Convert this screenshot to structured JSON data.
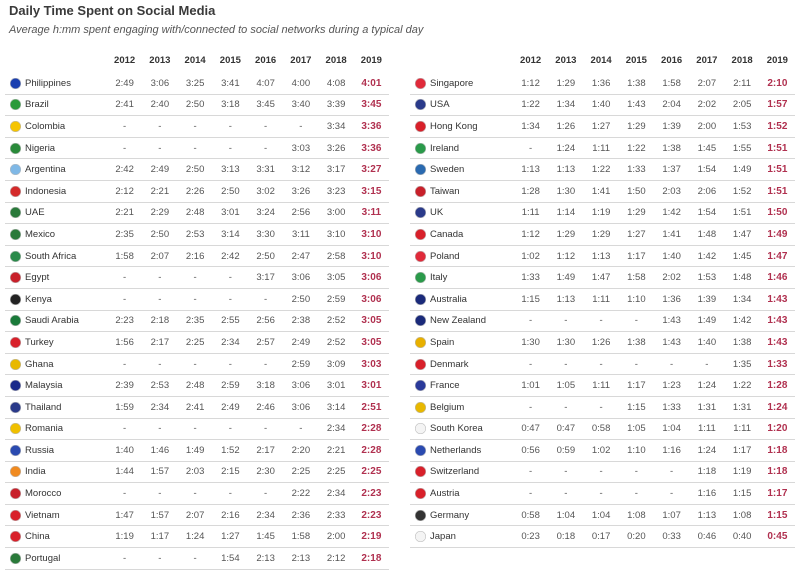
{
  "title": "Daily Time Spent on Social Media",
  "subtitle": "Average h:mm spent engaging with/connected to social networks during a typical day",
  "years": [
    "2012",
    "2013",
    "2014",
    "2015",
    "2016",
    "2017",
    "2018",
    "2019"
  ],
  "left": [
    {
      "country": "Philippines",
      "values": [
        "2:49",
        "3:06",
        "3:25",
        "3:41",
        "4:07",
        "4:00",
        "4:08",
        "4:01"
      ],
      "flag": "#1a3fb0"
    },
    {
      "country": "Brazil",
      "values": [
        "2:41",
        "2:40",
        "2:50",
        "3:18",
        "3:45",
        "3:40",
        "3:39",
        "3:45"
      ],
      "flag": "#2a9a3a"
    },
    {
      "country": "Colombia",
      "values": [
        "-",
        "-",
        "-",
        "-",
        "-",
        "-",
        "3:34",
        "3:36"
      ],
      "flag": "#f5c400"
    },
    {
      "country": "Nigeria",
      "values": [
        "-",
        "-",
        "-",
        "-",
        "-",
        "3:03",
        "3:26",
        "3:36"
      ],
      "flag": "#2a8a3a"
    },
    {
      "country": "Argentina",
      "values": [
        "2:42",
        "2:49",
        "2:50",
        "3:13",
        "3:31",
        "3:12",
        "3:17",
        "3:27"
      ],
      "flag": "#7fb8e6"
    },
    {
      "country": "Indonesia",
      "values": [
        "2:12",
        "2:21",
        "2:26",
        "2:50",
        "3:02",
        "3:26",
        "3:23",
        "3:15"
      ],
      "flag": "#d42a2a"
    },
    {
      "country": "UAE",
      "values": [
        "2:21",
        "2:29",
        "2:48",
        "3:01",
        "3:24",
        "2:56",
        "3:00",
        "3:11"
      ],
      "flag": "#2a7a3a"
    },
    {
      "country": "Mexico",
      "values": [
        "2:35",
        "2:50",
        "2:53",
        "3:14",
        "3:30",
        "3:11",
        "3:10",
        "3:10"
      ],
      "flag": "#2a7a3a"
    },
    {
      "country": "South Africa",
      "values": [
        "1:58",
        "2:07",
        "2:16",
        "2:42",
        "2:50",
        "2:47",
        "2:58",
        "3:10"
      ],
      "flag": "#2a8a4a"
    },
    {
      "country": "Egypt",
      "values": [
        "-",
        "-",
        "-",
        "-",
        "3:17",
        "3:06",
        "3:05",
        "3:06"
      ],
      "flag": "#c8202a"
    },
    {
      "country": "Kenya",
      "values": [
        "-",
        "-",
        "-",
        "-",
        "-",
        "2:50",
        "2:59",
        "3:06"
      ],
      "flag": "#222222"
    },
    {
      "country": "Saudi Arabia",
      "values": [
        "2:23",
        "2:18",
        "2:35",
        "2:55",
        "2:56",
        "2:38",
        "2:52",
        "3:05"
      ],
      "flag": "#1a7a3a"
    },
    {
      "country": "Turkey",
      "values": [
        "1:56",
        "2:17",
        "2:25",
        "2:34",
        "2:57",
        "2:49",
        "2:52",
        "3:05"
      ],
      "flag": "#d8202a"
    },
    {
      "country": "Ghana",
      "values": [
        "-",
        "-",
        "-",
        "-",
        "-",
        "2:59",
        "3:09",
        "3:03"
      ],
      "flag": "#e8b800"
    },
    {
      "country": "Malaysia",
      "values": [
        "2:39",
        "2:53",
        "2:48",
        "2:59",
        "3:18",
        "3:06",
        "3:01",
        "3:01"
      ],
      "flag": "#1a2a8a"
    },
    {
      "country": "Thailand",
      "values": [
        "1:59",
        "2:34",
        "2:41",
        "2:49",
        "2:46",
        "3:06",
        "3:14",
        "2:51"
      ],
      "flag": "#2a3a8a"
    },
    {
      "country": "Romania",
      "values": [
        "-",
        "-",
        "-",
        "-",
        "-",
        "-",
        "2:34",
        "2:28"
      ],
      "flag": "#f0c000"
    },
    {
      "country": "Russia",
      "values": [
        "1:40",
        "1:46",
        "1:49",
        "1:52",
        "2:17",
        "2:20",
        "2:21",
        "2:28"
      ],
      "flag": "#2a4ab0"
    },
    {
      "country": "India",
      "values": [
        "1:44",
        "1:57",
        "2:03",
        "2:15",
        "2:30",
        "2:25",
        "2:25",
        "2:25"
      ],
      "flag": "#f08a20"
    },
    {
      "country": "Morocco",
      "values": [
        "-",
        "-",
        "-",
        "-",
        "-",
        "2:22",
        "2:34",
        "2:23"
      ],
      "flag": "#c8202a"
    },
    {
      "country": "Vietnam",
      "values": [
        "1:47",
        "1:57",
        "2:07",
        "2:16",
        "2:34",
        "2:36",
        "2:33",
        "2:23"
      ],
      "flag": "#d8202a"
    },
    {
      "country": "China",
      "values": [
        "1:19",
        "1:17",
        "1:24",
        "1:27",
        "1:45",
        "1:58",
        "2:00",
        "2:19"
      ],
      "flag": "#d8202a"
    },
    {
      "country": "Portugal",
      "values": [
        "-",
        "-",
        "-",
        "1:54",
        "2:13",
        "2:13",
        "2:12",
        "2:18"
      ],
      "flag": "#2a7a3a"
    }
  ],
  "right": [
    {
      "country": "Singapore",
      "values": [
        "1:12",
        "1:29",
        "1:36",
        "1:38",
        "1:58",
        "2:07",
        "2:11",
        "2:10"
      ],
      "flag": "#e02a3a"
    },
    {
      "country": "USA",
      "values": [
        "1:22",
        "1:34",
        "1:40",
        "1:43",
        "2:04",
        "2:02",
        "2:05",
        "1:57"
      ],
      "flag": "#2a3a8a"
    },
    {
      "country": "Hong Kong",
      "values": [
        "1:34",
        "1:26",
        "1:27",
        "1:29",
        "1:39",
        "2:00",
        "1:53",
        "1:52"
      ],
      "flag": "#d8202a"
    },
    {
      "country": "Ireland",
      "values": [
        "-",
        "1:24",
        "1:11",
        "1:22",
        "1:38",
        "1:45",
        "1:55",
        "1:51"
      ],
      "flag": "#2a9a4a"
    },
    {
      "country": "Sweden",
      "values": [
        "1:13",
        "1:13",
        "1:22",
        "1:33",
        "1:37",
        "1:54",
        "1:49",
        "1:51"
      ],
      "flag": "#2a6ab0"
    },
    {
      "country": "Taiwan",
      "values": [
        "1:28",
        "1:30",
        "1:41",
        "1:50",
        "2:03",
        "2:06",
        "1:52",
        "1:51"
      ],
      "flag": "#c8202a"
    },
    {
      "country": "UK",
      "values": [
        "1:11",
        "1:14",
        "1:19",
        "1:29",
        "1:42",
        "1:54",
        "1:51",
        "1:50"
      ],
      "flag": "#2a3a8a"
    },
    {
      "country": "Canada",
      "values": [
        "1:12",
        "1:29",
        "1:29",
        "1:27",
        "1:41",
        "1:48",
        "1:47",
        "1:49"
      ],
      "flag": "#d8202a"
    },
    {
      "country": "Poland",
      "values": [
        "1:02",
        "1:12",
        "1:13",
        "1:17",
        "1:40",
        "1:42",
        "1:45",
        "1:47"
      ],
      "flag": "#e02a3a"
    },
    {
      "country": "Italy",
      "values": [
        "1:33",
        "1:49",
        "1:47",
        "1:58",
        "2:02",
        "1:53",
        "1:48",
        "1:46"
      ],
      "flag": "#2a9a4a"
    },
    {
      "country": "Australia",
      "values": [
        "1:15",
        "1:13",
        "1:11",
        "1:10",
        "1:36",
        "1:39",
        "1:34",
        "1:43"
      ],
      "flag": "#1a2a7a"
    },
    {
      "country": "New Zealand",
      "values": [
        "-",
        "-",
        "-",
        "-",
        "1:43",
        "1:49",
        "1:42",
        "1:43"
      ],
      "flag": "#1a2a7a"
    },
    {
      "country": "Spain",
      "values": [
        "1:30",
        "1:30",
        "1:26",
        "1:38",
        "1:43",
        "1:40",
        "1:38",
        "1:43"
      ],
      "flag": "#e8b000"
    },
    {
      "country": "Denmark",
      "values": [
        "-",
        "-",
        "-",
        "-",
        "-",
        "-",
        "1:35",
        "1:33"
      ],
      "flag": "#d8202a"
    },
    {
      "country": "France",
      "values": [
        "1:01",
        "1:05",
        "1:11",
        "1:17",
        "1:23",
        "1:24",
        "1:22",
        "1:28"
      ],
      "flag": "#2a3a9a"
    },
    {
      "country": "Belgium",
      "values": [
        "-",
        "-",
        "-",
        "1:15",
        "1:33",
        "1:31",
        "1:31",
        "1:24"
      ],
      "flag": "#e8b800"
    },
    {
      "country": "South Korea",
      "values": [
        "0:47",
        "0:47",
        "0:58",
        "1:05",
        "1:04",
        "1:11",
        "1:11",
        "1:20"
      ],
      "flag": "#f4f4f4"
    },
    {
      "country": "Netherlands",
      "values": [
        "0:56",
        "0:59",
        "1:02",
        "1:10",
        "1:16",
        "1:24",
        "1:17",
        "1:18"
      ],
      "flag": "#2a4ab0"
    },
    {
      "country": "Switzerland",
      "values": [
        "-",
        "-",
        "-",
        "-",
        "-",
        "1:18",
        "1:19",
        "1:18"
      ],
      "flag": "#d8202a"
    },
    {
      "country": "Austria",
      "values": [
        "-",
        "-",
        "-",
        "-",
        "-",
        "1:16",
        "1:15",
        "1:17"
      ],
      "flag": "#d8202a"
    },
    {
      "country": "Germany",
      "values": [
        "0:58",
        "1:04",
        "1:04",
        "1:08",
        "1:07",
        "1:13",
        "1:08",
        "1:15"
      ],
      "flag": "#333333"
    },
    {
      "country": "Japan",
      "values": [
        "0:23",
        "0:18",
        "0:17",
        "0:20",
        "0:33",
        "0:46",
        "0:40",
        "0:45"
      ],
      "flag": "#f4f4f4"
    }
  ]
}
